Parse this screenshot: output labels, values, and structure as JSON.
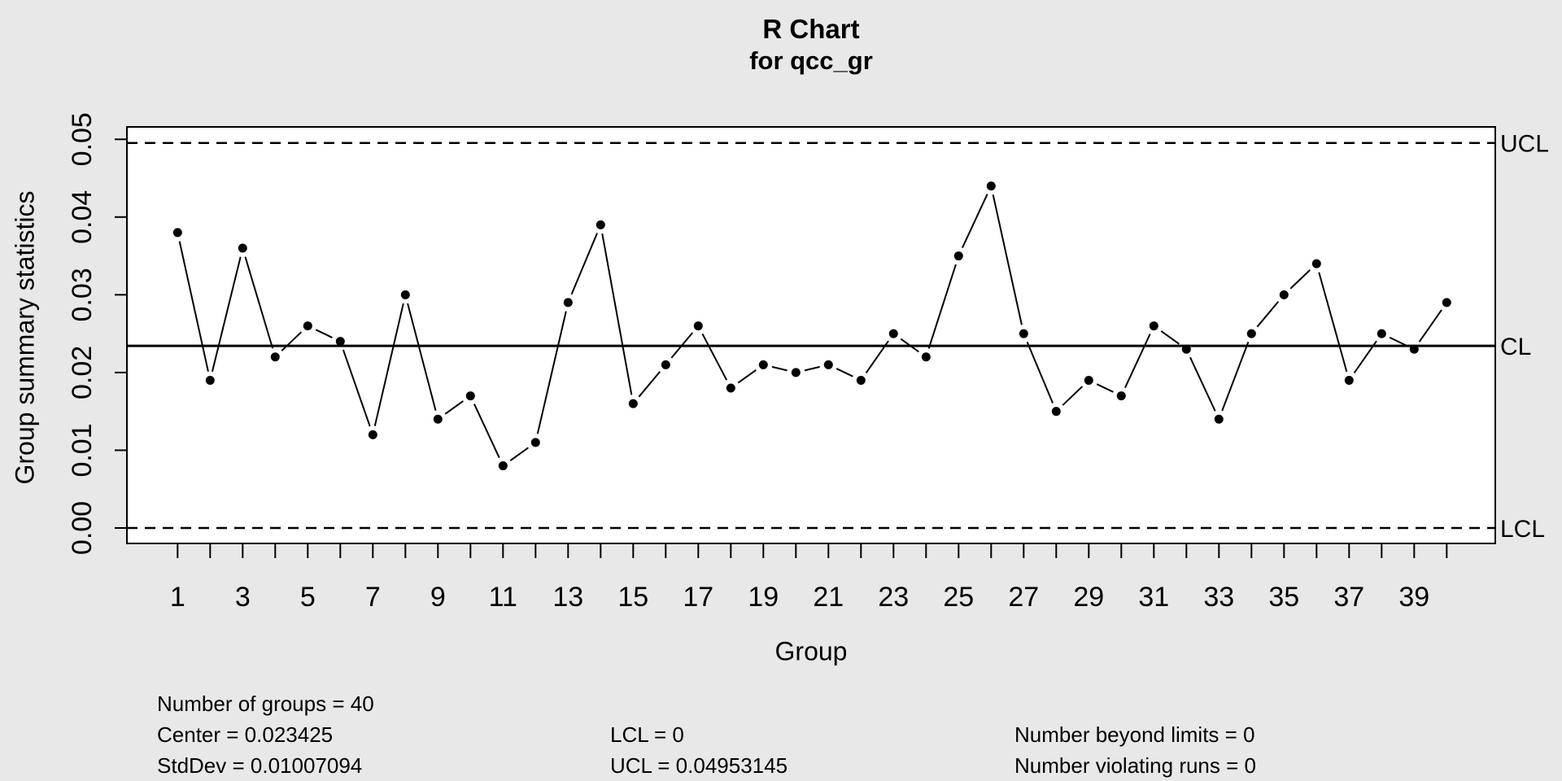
{
  "title": {
    "line1": "R Chart",
    "line2": "for qcc_gr"
  },
  "axes": {
    "y_label": "Group summary statistics",
    "x_label": "Group",
    "y_ticks": [
      "0.00",
      "0.01",
      "0.02",
      "0.03",
      "0.04",
      "0.05"
    ],
    "x_tick_labels": [
      1,
      3,
      5,
      7,
      9,
      11,
      13,
      15,
      17,
      19,
      21,
      23,
      25,
      27,
      29,
      31,
      33,
      35,
      37,
      39
    ]
  },
  "limit_labels": {
    "ucl": "UCL",
    "cl": "CL",
    "lcl": "LCL"
  },
  "chart_data": {
    "type": "line",
    "title": "R Chart for qcc_gr",
    "xlabel": "Group",
    "ylabel": "Group summary statistics",
    "x": [
      1,
      2,
      3,
      4,
      5,
      6,
      7,
      8,
      9,
      10,
      11,
      12,
      13,
      14,
      15,
      16,
      17,
      18,
      19,
      20,
      21,
      22,
      23,
      24,
      25,
      26,
      27,
      28,
      29,
      30,
      31,
      32,
      33,
      34,
      35,
      36,
      37,
      38,
      39,
      40
    ],
    "values": [
      0.038,
      0.019,
      0.036,
      0.022,
      0.026,
      0.024,
      0.012,
      0.03,
      0.014,
      0.017,
      0.008,
      0.011,
      0.029,
      0.039,
      0.016,
      0.021,
      0.026,
      0.018,
      0.021,
      0.02,
      0.021,
      0.019,
      0.025,
      0.022,
      0.035,
      0.044,
      0.025,
      0.015,
      0.019,
      0.017,
      0.026,
      0.023,
      0.014,
      0.025,
      0.03,
      0.034,
      0.019,
      0.025,
      0.023,
      0.029
    ],
    "center": 0.023425,
    "ucl": 0.04953145,
    "lcl": 0,
    "ylim": [
      0,
      0.05
    ],
    "grid": false,
    "legend": "none",
    "marker": "filled-circle",
    "line_style": "points-and-segments"
  },
  "stats": {
    "col1": [
      "Number of groups = 40",
      "Center = 0.023425",
      "StdDev = 0.01007094"
    ],
    "col2": [
      "LCL = 0",
      "UCL = 0.04953145"
    ],
    "col3": [
      "Number beyond limits = 0",
      "Number violating runs = 0"
    ]
  },
  "colors": {
    "background": "#e8e8e8",
    "plot_background": "#ffffff",
    "ink": "#000000",
    "limit_label": "#545454"
  }
}
